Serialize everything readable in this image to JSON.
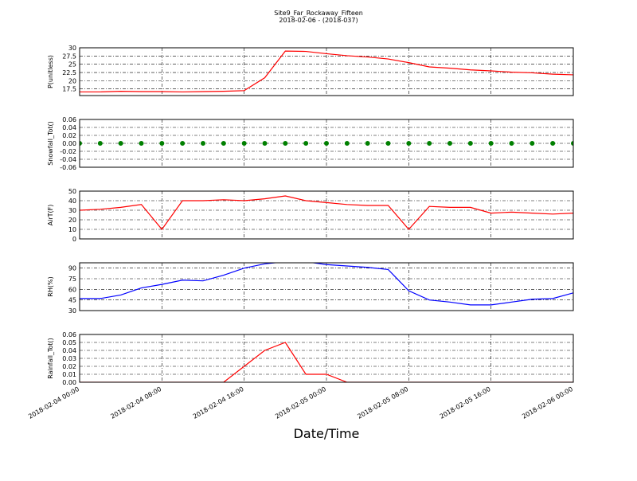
{
  "chart_data": [
    {
      "type": "line",
      "title": "Site9_Far_Rockaway_Fifteen",
      "subtitle": "2018-02-06 - (2018-037)",
      "ylabel": "P(unitless)",
      "x": [
        "2018-02-04 00:00",
        "2018-02-04 02:00",
        "2018-02-04 04:00",
        "2018-02-04 06:00",
        "2018-02-04 08:00",
        "2018-02-04 10:00",
        "2018-02-04 12:00",
        "2018-02-04 14:00",
        "2018-02-04 16:00",
        "2018-02-04 18:00",
        "2018-02-04 20:00",
        "2018-02-04 22:00",
        "2018-02-05 00:00",
        "2018-02-05 02:00",
        "2018-02-05 04:00",
        "2018-02-05 06:00",
        "2018-02-05 08:00",
        "2018-02-05 10:00",
        "2018-02-05 12:00",
        "2018-02-05 14:00",
        "2018-02-05 16:00",
        "2018-02-05 18:00",
        "2018-02-05 20:00",
        "2018-02-05 22:00",
        "2018-02-06 00:00"
      ],
      "series": [
        {
          "name": "P",
          "color": "#ff0000",
          "values": [
            16.6,
            16.6,
            16.8,
            16.7,
            16.7,
            16.6,
            16.7,
            16.8,
            17.0,
            20.9,
            29.0,
            28.9,
            28.2,
            27.6,
            27.2,
            26.6,
            25.5,
            24.2,
            23.8,
            23.3,
            23.0,
            22.6,
            22.4,
            22.0,
            21.8
          ]
        }
      ],
      "xlim": [
        "2018-02-04 00:00",
        "2018-02-06 00:00"
      ],
      "xticks": [
        "2018-02-04 00:00",
        "2018-02-04 08:00",
        "2018-02-04 16:00",
        "2018-02-05 00:00",
        "2018-02-05 08:00",
        "2018-02-05 16:00",
        "2018-02-06 00:00"
      ],
      "ylim": [
        15.5,
        30
      ],
      "yticks": [
        17.5,
        20.0,
        22.5,
        25.0,
        27.5,
        30.0
      ],
      "grid": true
    },
    {
      "type": "scatter",
      "ylabel": "Snowfall_Tot()",
      "x": [
        "2018-02-04 00:00",
        "2018-02-04 02:00",
        "2018-02-04 04:00",
        "2018-02-04 06:00",
        "2018-02-04 08:00",
        "2018-02-04 10:00",
        "2018-02-04 12:00",
        "2018-02-04 14:00",
        "2018-02-04 16:00",
        "2018-02-04 18:00",
        "2018-02-04 20:00",
        "2018-02-04 22:00",
        "2018-02-05 00:00",
        "2018-02-05 02:00",
        "2018-02-05 04:00",
        "2018-02-05 06:00",
        "2018-02-05 08:00",
        "2018-02-05 10:00",
        "2018-02-05 12:00",
        "2018-02-05 14:00",
        "2018-02-05 16:00",
        "2018-02-05 18:00",
        "2018-02-05 20:00",
        "2018-02-05 22:00",
        "2018-02-06 00:00"
      ],
      "series": [
        {
          "name": "Snowfall_Tot",
          "color": "#008000",
          "values": [
            0,
            0,
            0,
            0,
            0,
            0,
            0,
            0,
            0,
            0,
            0,
            0,
            0,
            0,
            0,
            0,
            0,
            0,
            0,
            0,
            0,
            0,
            0,
            0,
            0
          ]
        }
      ],
      "xlim": [
        "2018-02-04 00:00",
        "2018-02-06 00:00"
      ],
      "xticks": [
        "2018-02-04 00:00",
        "2018-02-04 08:00",
        "2018-02-04 16:00",
        "2018-02-05 00:00",
        "2018-02-05 08:00",
        "2018-02-05 16:00",
        "2018-02-06 00:00"
      ],
      "ylim": [
        -0.06,
        0.06
      ],
      "yticks": [
        -0.06,
        -0.04,
        -0.02,
        {
          "value": 0,
          "label": "0.00"
        },
        0.02,
        0.04,
        0.06
      ],
      "grid": true
    },
    {
      "type": "line",
      "ylabel": "AirT(F)",
      "x": [
        "2018-02-04 00:00",
        "2018-02-04 02:00",
        "2018-02-04 04:00",
        "2018-02-04 06:00",
        "2018-02-04 08:00",
        "2018-02-04 10:00",
        "2018-02-04 12:00",
        "2018-02-04 14:00",
        "2018-02-04 16:00",
        "2018-02-04 18:00",
        "2018-02-04 20:00",
        "2018-02-04 22:00",
        "2018-02-05 00:00",
        "2018-02-05 02:00",
        "2018-02-05 04:00",
        "2018-02-05 06:00",
        "2018-02-05 08:00",
        "2018-02-05 10:00",
        "2018-02-05 12:00",
        "2018-02-05 14:00",
        "2018-02-05 16:00",
        "2018-02-05 18:00",
        "2018-02-05 20:00",
        "2018-02-05 22:00",
        "2018-02-06 00:00"
      ],
      "series": [
        {
          "name": "AirT",
          "color": "#ff0000",
          "values": [
            30,
            31,
            33,
            36,
            10,
            40,
            40,
            41,
            40,
            42,
            45,
            40,
            38,
            36,
            35,
            35,
            10,
            34,
            33,
            33,
            27,
            28,
            27,
            26,
            27
          ]
        }
      ],
      "xlim": [
        "2018-02-04 00:00",
        "2018-02-06 00:00"
      ],
      "xticks": [
        "2018-02-04 00:00",
        "2018-02-04 08:00",
        "2018-02-04 16:00",
        "2018-02-05 00:00",
        "2018-02-05 08:00",
        "2018-02-05 16:00",
        "2018-02-06 00:00"
      ],
      "ylim": [
        0,
        50
      ],
      "yticks": [
        0,
        10,
        20,
        30,
        40,
        50
      ],
      "grid": true
    },
    {
      "type": "line",
      "ylabel": "RH(%)",
      "x": [
        "2018-02-04 00:00",
        "2018-02-04 02:00",
        "2018-02-04 04:00",
        "2018-02-04 06:00",
        "2018-02-04 08:00",
        "2018-02-04 10:00",
        "2018-02-04 12:00",
        "2018-02-04 14:00",
        "2018-02-04 16:00",
        "2018-02-04 18:00",
        "2018-02-04 20:00",
        "2018-02-04 22:00",
        "2018-02-05 00:00",
        "2018-02-05 02:00",
        "2018-02-05 04:00",
        "2018-02-05 06:00",
        "2018-02-05 08:00",
        "2018-02-05 10:00",
        "2018-02-05 12:00",
        "2018-02-05 14:00",
        "2018-02-05 16:00",
        "2018-02-05 18:00",
        "2018-02-05 20:00",
        "2018-02-05 22:00",
        "2018-02-06 00:00"
      ],
      "series": [
        {
          "name": "RH",
          "color": "#0000ff",
          "values": [
            47,
            47,
            52,
            62,
            67,
            73,
            72,
            80,
            90,
            96,
            99,
            99,
            95,
            93,
            91,
            88,
            58,
            45,
            42,
            38,
            38,
            42,
            46,
            47,
            55
          ]
        }
      ],
      "xlim": [
        "2018-02-04 00:00",
        "2018-02-06 00:00"
      ],
      "xticks": [
        "2018-02-04 00:00",
        "2018-02-04 08:00",
        "2018-02-04 16:00",
        "2018-02-05 00:00",
        "2018-02-05 08:00",
        "2018-02-05 16:00",
        "2018-02-06 00:00"
      ],
      "ylim": [
        30,
        97.5
      ],
      "yticks": [
        30,
        45,
        60,
        75,
        90
      ],
      "grid": true
    },
    {
      "type": "line",
      "ylabel": "Rainfall_Tot()",
      "xlabel": "Date/Time",
      "x": [
        "2018-02-04 00:00",
        "2018-02-04 02:00",
        "2018-02-04 04:00",
        "2018-02-04 06:00",
        "2018-02-04 08:00",
        "2018-02-04 10:00",
        "2018-02-04 12:00",
        "2018-02-04 14:00",
        "2018-02-04 16:00",
        "2018-02-04 18:00",
        "2018-02-04 20:00",
        "2018-02-04 22:00",
        "2018-02-05 00:00",
        "2018-02-05 02:00",
        "2018-02-05 04:00",
        "2018-02-05 06:00",
        "2018-02-05 08:00",
        "2018-02-05 10:00",
        "2018-02-05 12:00",
        "2018-02-05 14:00",
        "2018-02-05 16:00",
        "2018-02-05 18:00",
        "2018-02-05 20:00",
        "2018-02-05 22:00",
        "2018-02-06 00:00"
      ],
      "series": [
        {
          "name": "Rainfall_Tot",
          "color": "#ff0000",
          "values": [
            0,
            0,
            0,
            0,
            0,
            0,
            0,
            0,
            0.02,
            0.04,
            0.05,
            0.01,
            0.01,
            0,
            0,
            0,
            0,
            0,
            0,
            0,
            0,
            0,
            0,
            0,
            0
          ]
        }
      ],
      "xlim": [
        "2018-02-04 00:00",
        "2018-02-06 00:00"
      ],
      "xticks": [
        "2018-02-04 00:00",
        "2018-02-04 08:00",
        "2018-02-04 16:00",
        "2018-02-05 00:00",
        "2018-02-05 08:00",
        "2018-02-05 16:00",
        "2018-02-06 00:00"
      ],
      "ylim": [
        0,
        0.06
      ],
      "yticks": [
        {
          "value": 0,
          "label": "0.00"
        },
        0.01,
        0.02,
        0.03,
        0.04,
        0.05,
        0.06
      ],
      "grid": true,
      "show_xtick_labels": true
    }
  ]
}
